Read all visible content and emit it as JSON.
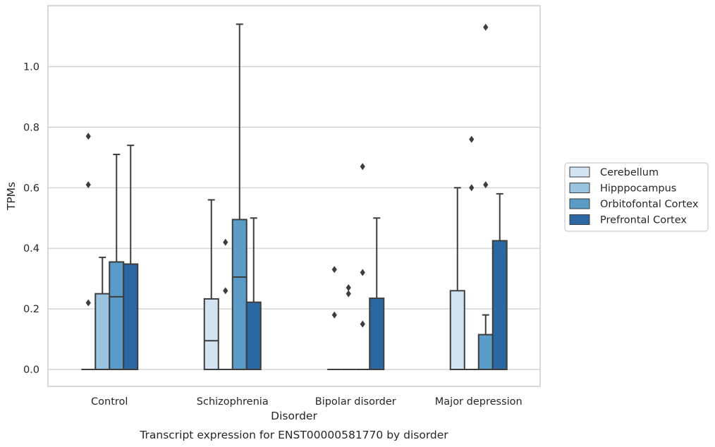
{
  "chart_data": {
    "type": "box",
    "title": "Transcript expression for ENST00000581770 by disorder",
    "xlabel": "Disorder",
    "ylabel": "TPMs",
    "ylim": [
      -0.055,
      1.205
    ],
    "yticks": [
      "0.0",
      "0.2",
      "0.4",
      "0.6",
      "0.8",
      "1.0"
    ],
    "grid": "horizontal",
    "legend_position": "right",
    "categories": [
      "Control",
      "Schizophrenia",
      "Bipolar disorder",
      "Major depression"
    ],
    "series": [
      {
        "name": "Cerebellum",
        "color": "#d3e3f2",
        "boxes": [
          {
            "q1": 0,
            "median": 0,
            "q3": 0,
            "whisker_low": 0,
            "whisker_high": 0,
            "outliers": [
              0.22,
              0.61,
              0.77
            ]
          },
          {
            "q1": 0,
            "median": 0.095,
            "q3": 0.233,
            "whisker_low": 0,
            "whisker_high": 0.56,
            "outliers": []
          },
          {
            "q1": 0,
            "median": 0,
            "q3": 0,
            "whisker_low": 0,
            "whisker_high": 0,
            "outliers": [
              0.18,
              0.33
            ]
          },
          {
            "q1": 0,
            "median": 0,
            "q3": 0.26,
            "whisker_low": 0,
            "whisker_high": 0.6,
            "outliers": []
          }
        ]
      },
      {
        "name": "Hipppocampus",
        "color": "#9ac3df",
        "boxes": [
          {
            "q1": 0,
            "median": 0,
            "q3": 0.25,
            "whisker_low": 0,
            "whisker_high": 0.37,
            "outliers": []
          },
          {
            "q1": 0,
            "median": 0,
            "q3": 0,
            "whisker_low": 0,
            "whisker_high": 0,
            "outliers": [
              0.26,
              0.42
            ]
          },
          {
            "q1": 0,
            "median": 0,
            "q3": 0,
            "whisker_low": 0,
            "whisker_high": 0,
            "outliers": [
              0.25,
              0.27
            ]
          },
          {
            "q1": 0,
            "median": 0,
            "q3": 0,
            "whisker_low": 0,
            "whisker_high": 0,
            "outliers": [
              0.6,
              0.76
            ]
          }
        ]
      },
      {
        "name": "Orbitofontal Cortex",
        "color": "#5a9bc8",
        "boxes": [
          {
            "q1": 0,
            "median": 0.24,
            "q3": 0.355,
            "whisker_low": 0,
            "whisker_high": 0.71,
            "outliers": []
          },
          {
            "q1": 0,
            "median": 0.305,
            "q3": 0.495,
            "whisker_low": 0,
            "whisker_high": 1.14,
            "outliers": []
          },
          {
            "q1": 0,
            "median": 0,
            "q3": 0,
            "whisker_low": 0,
            "whisker_high": 0,
            "outliers": [
              0.15,
              0.32,
              0.67
            ]
          },
          {
            "q1": 0,
            "median": 0,
            "q3": 0.115,
            "whisker_low": 0,
            "whisker_high": 0.18,
            "outliers": [
              0.61,
              1.13
            ]
          }
        ]
      },
      {
        "name": "Prefrontal Cortex",
        "color": "#2b67a3",
        "boxes": [
          {
            "q1": 0,
            "median": 0,
            "q3": 0.348,
            "whisker_low": 0,
            "whisker_high": 0.74,
            "outliers": []
          },
          {
            "q1": 0,
            "median": 0,
            "q3": 0.222,
            "whisker_low": 0,
            "whisker_high": 0.5,
            "outliers": []
          },
          {
            "q1": 0,
            "median": 0,
            "q3": 0.235,
            "whisker_low": 0,
            "whisker_high": 0.5,
            "outliers": []
          },
          {
            "q1": 0,
            "median": 0,
            "q3": 0.425,
            "whisker_low": 0,
            "whisker_high": 0.58,
            "outliers": []
          }
        ]
      }
    ]
  }
}
